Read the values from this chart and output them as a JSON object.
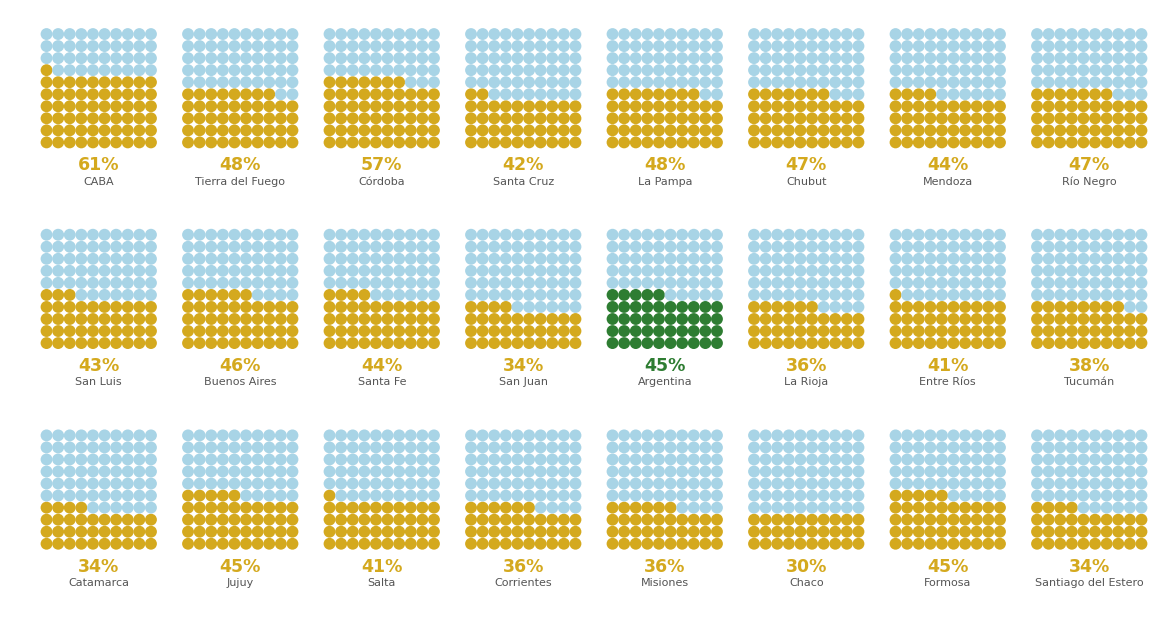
{
  "provinces": [
    {
      "name": "CABA",
      "pct": 61,
      "special": false
    },
    {
      "name": "Tierra del Fuego",
      "pct": 48,
      "special": false
    },
    {
      "name": "Córdoba",
      "pct": 57,
      "special": false
    },
    {
      "name": "Santa Cruz",
      "pct": 42,
      "special": false
    },
    {
      "name": "La Pampa",
      "pct": 48,
      "special": false
    },
    {
      "name": "Chubut",
      "pct": 47,
      "special": false
    },
    {
      "name": "Mendoza",
      "pct": 44,
      "special": false
    },
    {
      "name": "Río Negro",
      "pct": 47,
      "special": false
    },
    {
      "name": "San Luis",
      "pct": 43,
      "special": false
    },
    {
      "name": "Buenos Aires",
      "pct": 46,
      "special": false
    },
    {
      "name": "Santa Fe",
      "pct": 44,
      "special": false
    },
    {
      "name": "San Juan",
      "pct": 34,
      "special": false
    },
    {
      "name": "Argentina",
      "pct": 45,
      "special": true
    },
    {
      "name": "La Rioja",
      "pct": 36,
      "special": false
    },
    {
      "name": "Entre Ríos",
      "pct": 41,
      "special": false
    },
    {
      "name": "Tucumán",
      "pct": 38,
      "special": false
    },
    {
      "name": "Catamarca",
      "pct": 34,
      "special": false
    },
    {
      "name": "Jujuy",
      "pct": 45,
      "special": false
    },
    {
      "name": "Salta",
      "pct": 41,
      "special": false
    },
    {
      "name": "Corrientes",
      "pct": 36,
      "special": false
    },
    {
      "name": "Misiones",
      "pct": 36,
      "special": false
    },
    {
      "name": "Chaco",
      "pct": 30,
      "special": false
    },
    {
      "name": "Formosa",
      "pct": 45,
      "special": false
    },
    {
      "name": "Santiago del Estero",
      "pct": 34,
      "special": false
    }
  ],
  "color_yellow": "#D4A91E",
  "color_blue": "#A8D4E6",
  "color_green": "#2E7D32",
  "color_pct_text": "#D4A91E",
  "color_pct_text_special": "#2E7D32",
  "color_name_text": "#555555",
  "background_color": "#FFFFFF",
  "num_chart_cols": 8,
  "num_chart_rows": 3,
  "grid_rows": 10,
  "grid_cols": 10
}
